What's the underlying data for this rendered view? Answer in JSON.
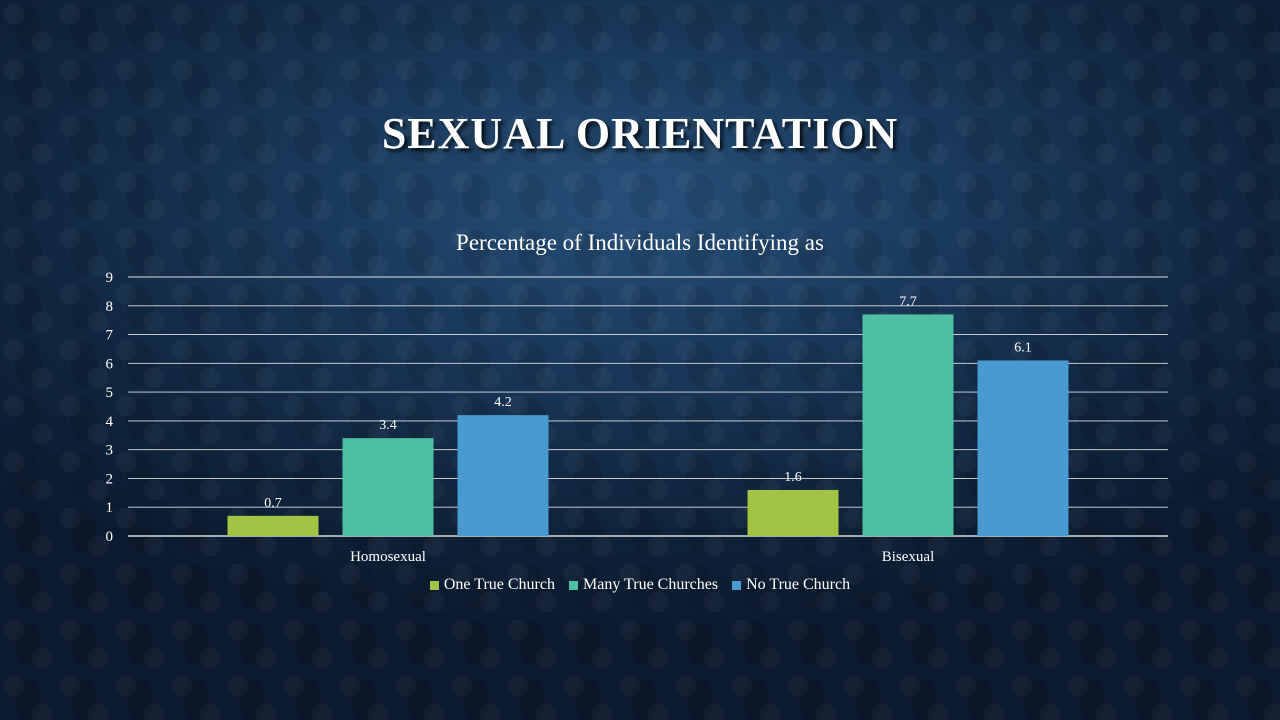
{
  "slide": {
    "title": "SEXUAL ORIENTATION"
  },
  "chart_data": {
    "type": "bar",
    "title": "Percentage of Individuals Identifying as",
    "xlabel": "",
    "ylabel": "",
    "ylim": [
      0,
      9
    ],
    "yticks": [
      "0",
      "1",
      "2",
      "3",
      "4",
      "5",
      "6",
      "7",
      "8",
      "9"
    ],
    "categories": [
      "Homosexual",
      "Bisexual"
    ],
    "series": [
      {
        "name": "One True Church",
        "values": [
          0.7,
          1.6
        ],
        "color": "#a2c444"
      },
      {
        "name": "Many True Churches",
        "values": [
          3.4,
          7.7
        ],
        "color": "#4fbfa2"
      },
      {
        "name": "No True Church",
        "values": [
          4.2,
          6.1
        ],
        "color": "#4a9ad2"
      }
    ],
    "grid": true,
    "legend": "bottom",
    "data_labels": true
  }
}
